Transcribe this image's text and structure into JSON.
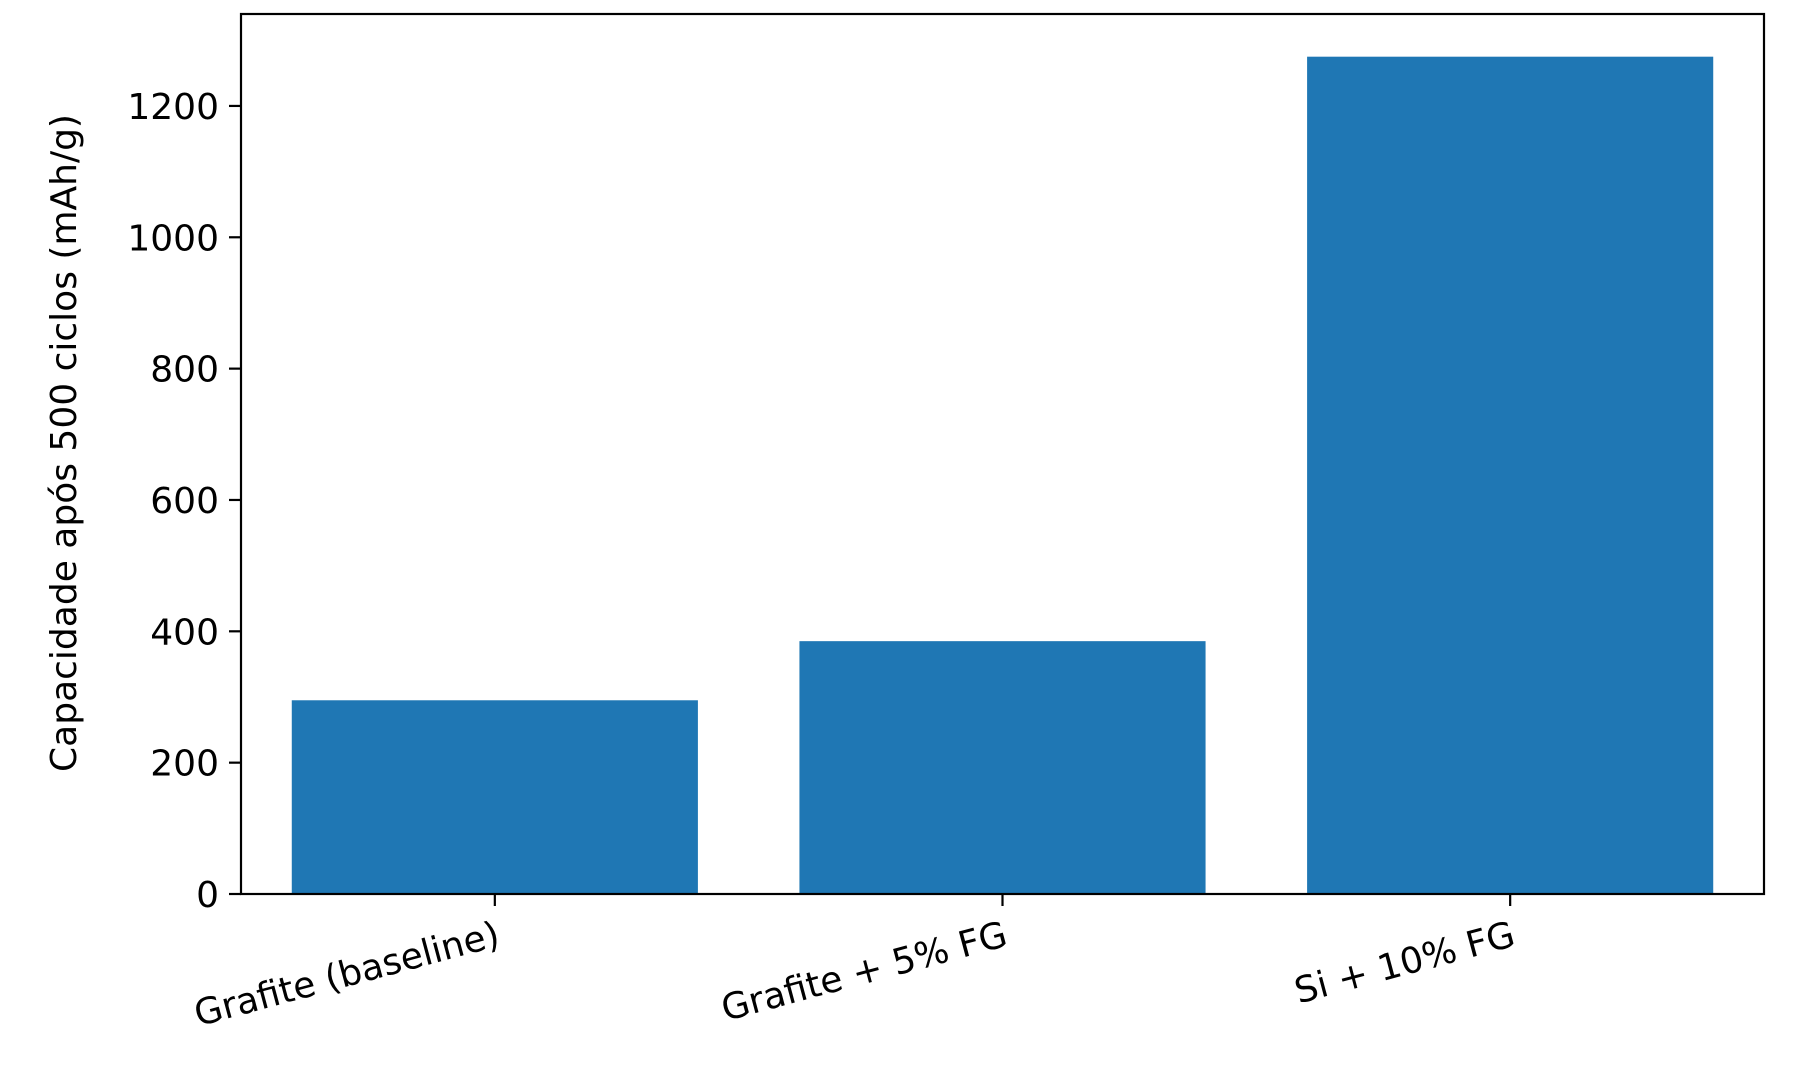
{
  "chart_data": {
    "type": "bar",
    "title": "",
    "xlabel": "",
    "ylabel": "Capacidade após 500 ciclos (mAh/g)",
    "categories": [
      "Grafite (baseline)",
      "Grafite + 5% FG",
      "Si + 10% FG"
    ],
    "values": [
      295,
      385,
      1275
    ],
    "ylim": [
      0,
      1340
    ],
    "yticks": [
      0,
      200,
      400,
      600,
      800,
      1000,
      1200
    ],
    "ytick_labels": [
      "0",
      "200",
      "400",
      "600",
      "800",
      "1000",
      "1200"
    ],
    "grid": false,
    "legend": "none",
    "bar_color": "#1f77b4"
  }
}
